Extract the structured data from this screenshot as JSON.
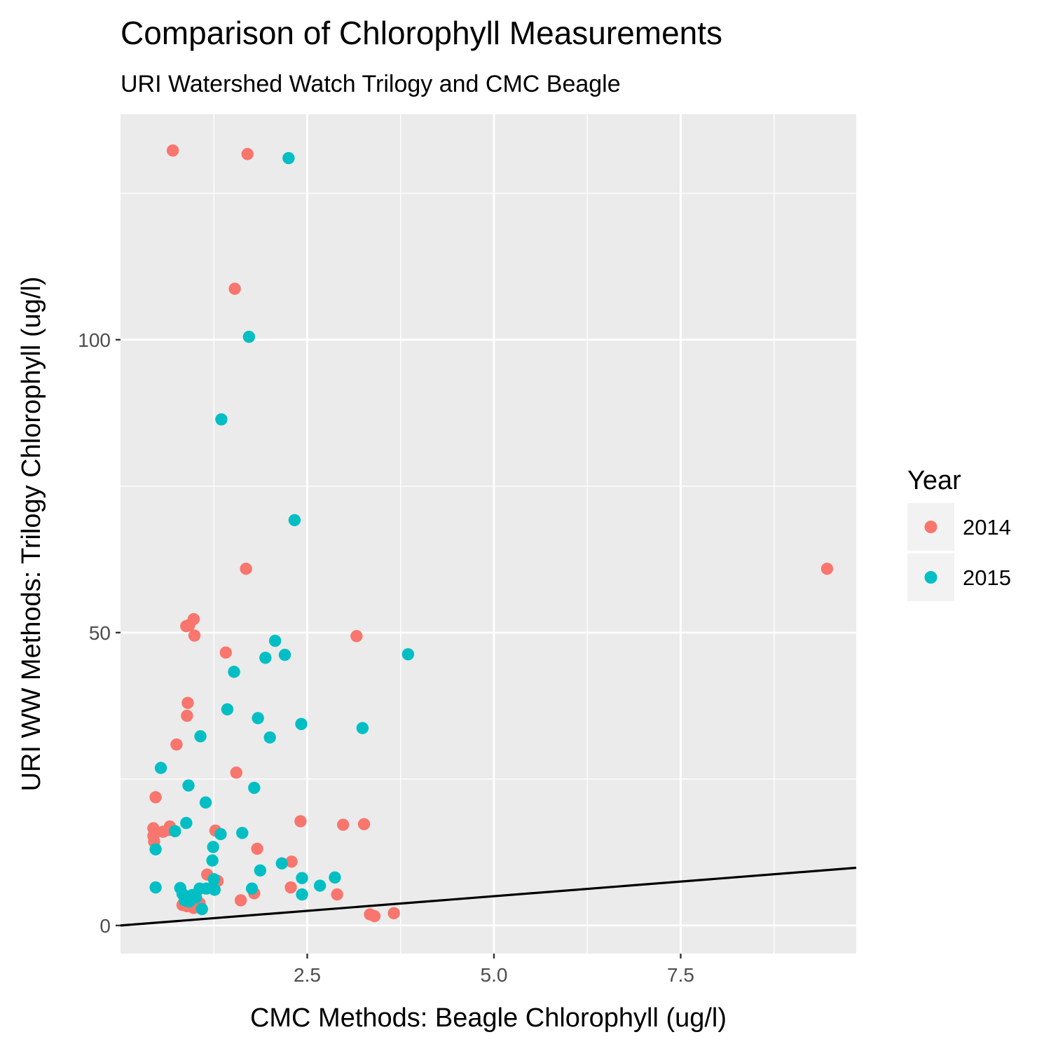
{
  "chart_data": {
    "type": "scatter",
    "title": "Comparison of Chlorophyll Measurements",
    "subtitle": "URI Watershed Watch Trilogy and CMC Beagle",
    "xlabel": "CMC Methods: Beagle Chlorophyll (ug/l)",
    "ylabel": "URI WW Methods: Trilogy Chlorophyll (ug/l)",
    "xlim": [
      0.0,
      9.85
    ],
    "ylim": [
      -4.8,
      138.5
    ],
    "x_ticks": [
      2.5,
      5.0,
      7.5
    ],
    "x_tick_labels": [
      "2.5",
      "5.0",
      "7.5"
    ],
    "y_ticks": [
      0,
      50,
      100
    ],
    "y_tick_labels": [
      "0",
      "50",
      "100"
    ],
    "grid": true,
    "reference_line": {
      "slope": 1,
      "intercept": 0,
      "color": "#000000"
    },
    "legend": {
      "title": "Year",
      "position": "right",
      "entries": [
        {
          "label": "2014",
          "color": "#F8766D"
        },
        {
          "label": "2015",
          "color": "#00BFC4"
        }
      ]
    },
    "series": [
      {
        "name": "2014",
        "color": "#F8766D",
        "points": [
          [
            0.7,
            132.3
          ],
          [
            1.7,
            131.7
          ],
          [
            1.53,
            108.7
          ],
          [
            1.68,
            60.9
          ],
          [
            9.46,
            60.9
          ],
          [
            0.98,
            52.3
          ],
          [
            0.92,
            51.3
          ],
          [
            0.88,
            51.1
          ],
          [
            0.99,
            49.5
          ],
          [
            3.16,
            49.4
          ],
          [
            1.41,
            46.6
          ],
          [
            0.9,
            38.0
          ],
          [
            0.89,
            35.8
          ],
          [
            0.75,
            30.9
          ],
          [
            1.55,
            26.1
          ],
          [
            0.47,
            21.9
          ],
          [
            2.41,
            17.8
          ],
          [
            2.98,
            17.2
          ],
          [
            3.26,
            17.3
          ],
          [
            0.44,
            16.6
          ],
          [
            0.66,
            16.9
          ],
          [
            0.44,
            15.3
          ],
          [
            0.45,
            14.3
          ],
          [
            0.57,
            16.0
          ],
          [
            0.65,
            16.3
          ],
          [
            1.27,
            16.2
          ],
          [
            1.83,
            13.1
          ],
          [
            2.29,
            10.9
          ],
          [
            1.16,
            8.7
          ],
          [
            1.3,
            7.6
          ],
          [
            2.28,
            6.5
          ],
          [
            1.79,
            5.5
          ],
          [
            2.9,
            5.3
          ],
          [
            1.61,
            4.3
          ],
          [
            0.83,
            3.5
          ],
          [
            0.89,
            3.3
          ],
          [
            0.98,
            3.0
          ],
          [
            1.06,
            3.8
          ],
          [
            3.34,
            1.9
          ],
          [
            3.4,
            1.6
          ],
          [
            3.66,
            2.1
          ]
        ]
      },
      {
        "name": "2015",
        "color": "#00BFC4",
        "points": [
          [
            2.25,
            131.0
          ],
          [
            1.72,
            100.5
          ],
          [
            1.35,
            86.4
          ],
          [
            2.33,
            69.2
          ],
          [
            2.07,
            48.6
          ],
          [
            2.2,
            46.2
          ],
          [
            3.85,
            46.3
          ],
          [
            1.94,
            45.7
          ],
          [
            1.52,
            43.3
          ],
          [
            1.43,
            36.9
          ],
          [
            1.84,
            35.4
          ],
          [
            2.42,
            34.4
          ],
          [
            3.24,
            33.7
          ],
          [
            1.07,
            32.3
          ],
          [
            2.0,
            32.1
          ],
          [
            0.54,
            26.9
          ],
          [
            0.91,
            23.9
          ],
          [
            1.79,
            23.5
          ],
          [
            1.14,
            21.0
          ],
          [
            0.88,
            17.5
          ],
          [
            0.73,
            16.1
          ],
          [
            1.34,
            15.6
          ],
          [
            1.63,
            15.8
          ],
          [
            0.47,
            13.0
          ],
          [
            1.24,
            13.4
          ],
          [
            1.23,
            11.1
          ],
          [
            1.87,
            9.4
          ],
          [
            2.16,
            10.6
          ],
          [
            2.87,
            8.2
          ],
          [
            2.43,
            8.1
          ],
          [
            1.25,
            7.9
          ],
          [
            0.47,
            6.5
          ],
          [
            0.8,
            6.4
          ],
          [
            1.15,
            6.3
          ],
          [
            1.06,
            6.3
          ],
          [
            1.26,
            6.1
          ],
          [
            2.67,
            6.8
          ],
          [
            1.76,
            6.3
          ],
          [
            2.43,
            5.3
          ],
          [
            0.83,
            5.4
          ],
          [
            0.96,
            5.2
          ],
          [
            0.9,
            4.6
          ],
          [
            1.01,
            4.8
          ],
          [
            0.86,
            4.3
          ],
          [
            0.92,
            4.1
          ],
          [
            1.09,
            2.8
          ]
        ]
      }
    ]
  }
}
